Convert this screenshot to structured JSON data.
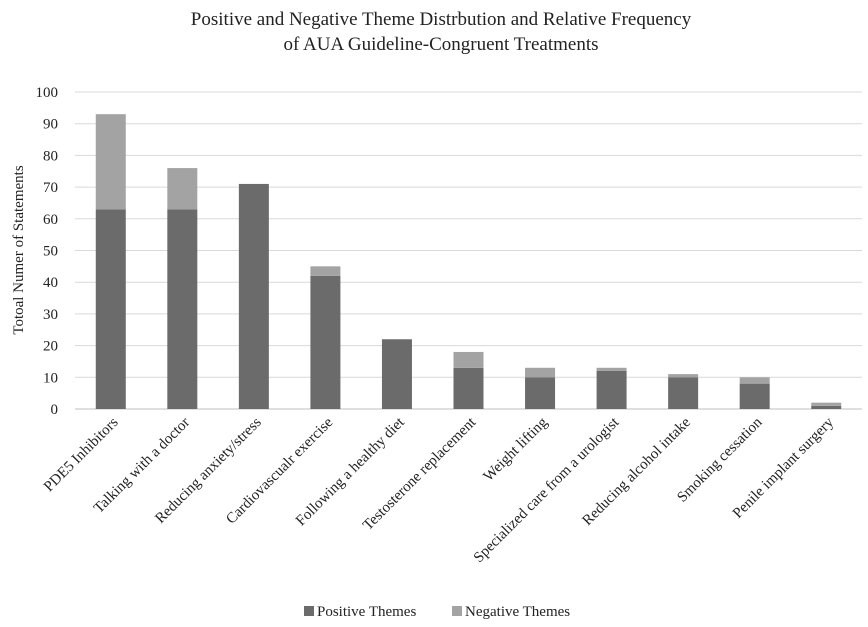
{
  "chart_data": {
    "type": "bar",
    "stacked": true,
    "title_lines": [
      "Positive and Negative Theme Distrbution and Relative Frequency",
      "of AUA Guideline-Congruent Treatments"
    ],
    "xlabel": "",
    "ylabel": "Totoal Numer of Statements",
    "ylim": [
      0,
      100
    ],
    "yticks": [
      0,
      10,
      20,
      30,
      40,
      50,
      60,
      70,
      80,
      90,
      100
    ],
    "grid": true,
    "legend_position": "bottom",
    "categories": [
      "PDE5 Inhibitors",
      "Talking with a doctor",
      "Reducing anxiety/stress",
      "Cardiovascualr exercise",
      "Following a healthy diet",
      "Testosterone replacement",
      "Weight lifting",
      "Specialized care from a urologist",
      "Reducing alcohol intake",
      "Smoking cessation",
      "Penile implant surgery"
    ],
    "series": [
      {
        "name": "Positive Themes",
        "color": "#6b6b6b",
        "values": [
          63,
          63,
          71,
          42,
          22,
          13,
          10,
          12,
          10,
          8,
          1
        ]
      },
      {
        "name": "Negative Themes",
        "color": "#a3a3a3",
        "values": [
          30,
          13,
          0,
          3,
          0,
          5,
          3,
          1,
          1,
          2,
          1
        ]
      }
    ]
  }
}
